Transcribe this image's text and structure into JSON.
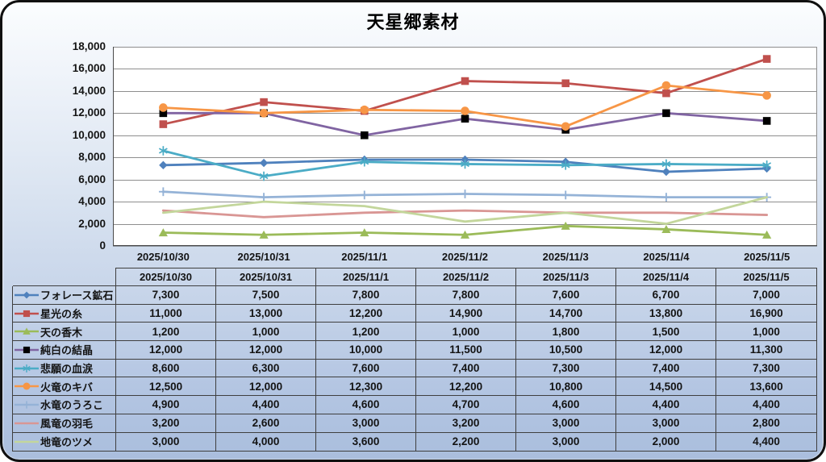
{
  "title": "天星郷素材",
  "colors": {
    "frame_border": "#101010",
    "background_top": "#fbfdfe",
    "background_bottom": "#aabedd",
    "plot_background": "#ffffff",
    "gridline": "#8e8e8e",
    "axis_line": "#4a4a4a",
    "table_border": "#3f3f3f",
    "text": "#141414"
  },
  "chart_data": {
    "type": "line",
    "title": "天星郷素材",
    "categories": [
      "2025/10/30",
      "2025/10/31",
      "2025/11/1",
      "2025/11/2",
      "2025/11/3",
      "2025/11/4",
      "2025/11/5"
    ],
    "series": [
      {
        "name": "フォレース鉱石",
        "color": "#4f81bd",
        "marker": "diamond",
        "marker_color": "#4f81bd",
        "values": [
          7300,
          7500,
          7800,
          7800,
          7600,
          6700,
          7000
        ]
      },
      {
        "name": "星光の糸",
        "color": "#c0504d",
        "marker": "square",
        "marker_color": "#c0504d",
        "values": [
          11000,
          13000,
          12200,
          14900,
          14700,
          13800,
          16900
        ]
      },
      {
        "name": "天の香木",
        "color": "#9bbb59",
        "marker": "triangle",
        "marker_color": "#9bbb59",
        "values": [
          1200,
          1000,
          1200,
          1000,
          1800,
          1500,
          1000
        ]
      },
      {
        "name": "純白の結晶",
        "color": "#8064a2",
        "marker": "square",
        "marker_color": "#000000",
        "values": [
          12000,
          12000,
          10000,
          11500,
          10500,
          12000,
          11300
        ]
      },
      {
        "name": "悲願の血涙",
        "color": "#4bacc6",
        "marker": "asterisk",
        "marker_color": "#4bacc6",
        "values": [
          8600,
          6300,
          7600,
          7400,
          7300,
          7400,
          7300
        ]
      },
      {
        "name": "火竜のキバ",
        "color": "#f79646",
        "marker": "circle",
        "marker_color": "#f79646",
        "values": [
          12500,
          12000,
          12300,
          12200,
          10800,
          14500,
          13600
        ]
      },
      {
        "name": "水竜のうろこ",
        "color": "#95b3d7",
        "marker": "plus",
        "marker_color": "#95b3d7",
        "values": [
          4900,
          4400,
          4600,
          4700,
          4600,
          4400,
          4400
        ]
      },
      {
        "name": "風竜の羽毛",
        "color": "#d99694",
        "marker": "none",
        "marker_color": "#d99694",
        "values": [
          3200,
          2600,
          3000,
          3200,
          3000,
          3000,
          2800
        ]
      },
      {
        "name": "地竜のツメ",
        "color": "#c3d69b",
        "marker": "none",
        "marker_color": "#c3d69b",
        "values": [
          3000,
          4000,
          3600,
          2200,
          3000,
          2000,
          4400
        ]
      }
    ],
    "ylim": [
      0,
      18000
    ],
    "ytick_step": 2000,
    "grid": true,
    "legend_position": "data-table-left",
    "number_format": "#,##0"
  }
}
